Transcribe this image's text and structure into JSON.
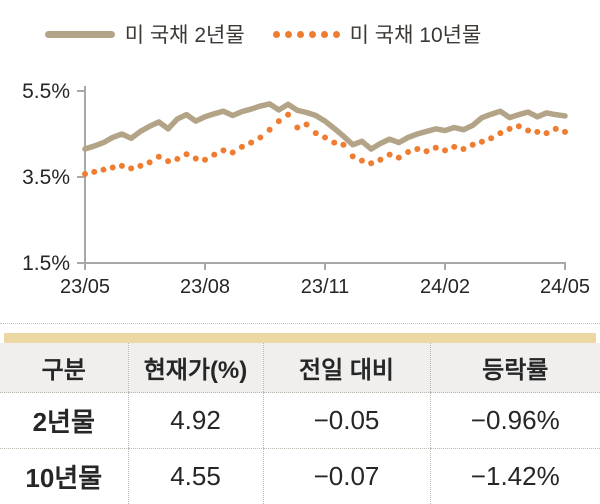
{
  "colors": {
    "series_2yr": "#b3a488",
    "series_10yr": "#ee7d31",
    "axis": "#a8a8a8",
    "gold_bar": "#ecd8a2",
    "header_bg": "#f0efee",
    "text": "#262626"
  },
  "chart_data": {
    "type": "line",
    "title": "",
    "xlabel": "",
    "ylabel": "",
    "grid": false,
    "legend_position": "top",
    "x_range": [
      "2023-05",
      "2024-05"
    ],
    "sampling": "weekly",
    "ylim": [
      1.5,
      5.5
    ],
    "y_ticks": [
      5.5,
      3.5,
      1.5
    ],
    "y_tick_labels": [
      "5.5%",
      "3.5%",
      "1.5%"
    ],
    "x_tick_labels": [
      "23/05",
      "23/08",
      "23/11",
      "24/02",
      "24/05"
    ],
    "series": [
      {
        "name": "미 국채 2년물",
        "color": "#b3a488",
        "style": "solid",
        "values": [
          4.15,
          4.22,
          4.3,
          4.42,
          4.5,
          4.4,
          4.56,
          4.68,
          4.78,
          4.62,
          4.85,
          4.95,
          4.8,
          4.9,
          4.97,
          5.03,
          4.93,
          5.02,
          5.08,
          5.15,
          5.2,
          5.06,
          5.19,
          5.05,
          5.0,
          4.93,
          4.8,
          4.63,
          4.45,
          4.25,
          4.33,
          4.15,
          4.28,
          4.38,
          4.3,
          4.42,
          4.5,
          4.56,
          4.62,
          4.58,
          4.65,
          4.6,
          4.7,
          4.88,
          4.96,
          5.03,
          4.88,
          4.95,
          5.01,
          4.9,
          4.99,
          4.95,
          4.92
        ]
      },
      {
        "name": "미 국채 10년물",
        "color": "#ee7d31",
        "style": "dotted",
        "values": [
          3.57,
          3.62,
          3.67,
          3.72,
          3.76,
          3.7,
          3.76,
          3.84,
          3.97,
          3.87,
          3.92,
          4.03,
          3.93,
          3.9,
          4.02,
          4.12,
          4.07,
          4.2,
          4.3,
          4.42,
          4.6,
          4.8,
          4.95,
          4.65,
          4.72,
          4.52,
          4.42,
          4.3,
          4.25,
          3.98,
          3.88,
          3.82,
          3.9,
          4.02,
          3.95,
          4.08,
          4.15,
          4.1,
          4.18,
          4.12,
          4.2,
          4.15,
          4.25,
          4.32,
          4.4,
          4.52,
          4.62,
          4.68,
          4.58,
          4.55,
          4.52,
          4.62,
          4.55
        ]
      }
    ]
  },
  "table": {
    "headers": [
      "구분",
      "현재가(%)",
      "전일 대비",
      "등락률"
    ],
    "rows": [
      {
        "label": "2년물",
        "current": "4.92",
        "change": "−0.05",
        "change_pct": "−0.96%"
      },
      {
        "label": "10년물",
        "current": "4.55",
        "change": "−0.07",
        "change_pct": "−1.42%"
      }
    ]
  }
}
